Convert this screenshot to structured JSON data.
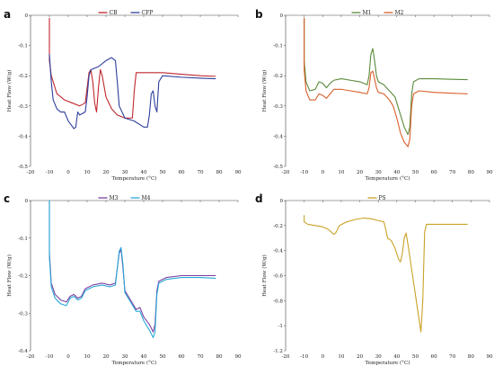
{
  "chart_data": [
    {
      "panel": "a",
      "type": "line",
      "xlabel": "Temperature (°C)",
      "ylabel": "Heat Flow (W/g)",
      "xlim": [
        -20,
        90
      ],
      "ylim": [
        -0.5,
        0
      ],
      "xticks": [
        -20,
        -10,
        0,
        10,
        20,
        30,
        40,
        50,
        60,
        70,
        80,
        90
      ],
      "yticks": [
        0,
        -0.1,
        -0.2,
        -0.3,
        -0.4,
        -0.5
      ],
      "legend_position": "top-center",
      "series": [
        {
          "name": "CB",
          "color": "#c0272d",
          "points": [
            [
              -10,
              -0.01
            ],
            [
              -10,
              -0.15
            ],
            [
              -9,
              -0.2
            ],
            [
              -6,
              -0.26
            ],
            [
              -2,
              -0.28
            ],
            [
              2,
              -0.29
            ],
            [
              6,
              -0.3
            ],
            [
              9,
              -0.29
            ],
            [
              10,
              -0.24
            ],
            [
              11,
              -0.19
            ],
            [
              12,
              -0.18
            ],
            [
              13,
              -0.22
            ],
            [
              14,
              -0.29
            ],
            [
              15,
              -0.32
            ],
            [
              16,
              -0.24
            ],
            [
              17,
              -0.18
            ],
            [
              18,
              -0.2
            ],
            [
              20,
              -0.27
            ],
            [
              23,
              -0.31
            ],
            [
              26,
              -0.33
            ],
            [
              30,
              -0.34
            ],
            [
              34,
              -0.34
            ],
            [
              35,
              -0.25
            ],
            [
              36,
              -0.19
            ],
            [
              40,
              -0.19
            ],
            [
              50,
              -0.19
            ],
            [
              60,
              -0.195
            ],
            [
              70,
              -0.2
            ],
            [
              78,
              -0.202
            ]
          ]
        },
        {
          "name": "CFP",
          "color": "#2e3e9c",
          "points": [
            [
              -10,
              -0.13
            ],
            [
              -9,
              -0.22
            ],
            [
              -8,
              -0.28
            ],
            [
              -6,
              -0.31
            ],
            [
              -4,
              -0.32
            ],
            [
              -2,
              -0.32
            ],
            [
              0,
              -0.35
            ],
            [
              3,
              -0.375
            ],
            [
              4,
              -0.37
            ],
            [
              5,
              -0.32
            ],
            [
              6,
              -0.33
            ],
            [
              9,
              -0.32
            ],
            [
              10,
              -0.27
            ],
            [
              11,
              -0.2
            ],
            [
              12,
              -0.18
            ],
            [
              16,
              -0.17
            ],
            [
              20,
              -0.15
            ],
            [
              23,
              -0.14
            ],
            [
              25,
              -0.15
            ],
            [
              26,
              -0.22
            ],
            [
              27,
              -0.3
            ],
            [
              30,
              -0.34
            ],
            [
              35,
              -0.35
            ],
            [
              40,
              -0.37
            ],
            [
              42,
              -0.37
            ],
            [
              43,
              -0.33
            ],
            [
              44,
              -0.26
            ],
            [
              45,
              -0.25
            ],
            [
              46,
              -0.3
            ],
            [
              47,
              -0.32
            ],
            [
              48,
              -0.22
            ],
            [
              50,
              -0.2
            ],
            [
              60,
              -0.205
            ],
            [
              70,
              -0.208
            ],
            [
              78,
              -0.21
            ]
          ]
        }
      ]
    },
    {
      "panel": "b",
      "type": "line",
      "xlabel": "Temperature (°C)",
      "ylabel": "Heat Flow (W/g)",
      "xlim": [
        -20,
        90
      ],
      "ylim": [
        -0.5,
        0
      ],
      "xticks": [
        -20,
        -10,
        0,
        10,
        20,
        30,
        40,
        50,
        60,
        70,
        80,
        90
      ],
      "yticks": [
        0,
        -0.1,
        -0.2,
        -0.3,
        -0.4,
        -0.5
      ],
      "legend_position": "top-center",
      "series": [
        {
          "name": "M1",
          "color": "#5b8a3a",
          "points": [
            [
              -10,
              -0.01
            ],
            [
              -10,
              -0.15
            ],
            [
              -9,
              -0.22
            ],
            [
              -7,
              -0.25
            ],
            [
              -4,
              -0.245
            ],
            [
              -2,
              -0.22
            ],
            [
              0,
              -0.225
            ],
            [
              2,
              -0.24
            ],
            [
              4,
              -0.225
            ],
            [
              6,
              -0.215
            ],
            [
              10,
              -0.21
            ],
            [
              15,
              -0.215
            ],
            [
              20,
              -0.22
            ],
            [
              24,
              -0.23
            ],
            [
              25,
              -0.2
            ],
            [
              26,
              -0.13
            ],
            [
              27,
              -0.11
            ],
            [
              28,
              -0.15
            ],
            [
              29,
              -0.2
            ],
            [
              30,
              -0.22
            ],
            [
              33,
              -0.23
            ],
            [
              36,
              -0.25
            ],
            [
              39,
              -0.27
            ],
            [
              41,
              -0.31
            ],
            [
              44,
              -0.37
            ],
            [
              46,
              -0.395
            ],
            [
              47,
              -0.37
            ],
            [
              48,
              -0.26
            ],
            [
              49,
              -0.22
            ],
            [
              52,
              -0.21
            ],
            [
              60,
              -0.21
            ],
            [
              70,
              -0.212
            ],
            [
              78,
              -0.213
            ]
          ]
        },
        {
          "name": "M2",
          "color": "#d95f2b",
          "points": [
            [
              -10,
              -0.01
            ],
            [
              -10,
              -0.18
            ],
            [
              -9,
              -0.25
            ],
            [
              -7,
              -0.28
            ],
            [
              -4,
              -0.28
            ],
            [
              -2,
              -0.26
            ],
            [
              0,
              -0.265
            ],
            [
              2,
              -0.275
            ],
            [
              4,
              -0.26
            ],
            [
              6,
              -0.245
            ],
            [
              10,
              -0.245
            ],
            [
              15,
              -0.25
            ],
            [
              20,
              -0.255
            ],
            [
              24,
              -0.26
            ],
            [
              25,
              -0.24
            ],
            [
              26,
              -0.19
            ],
            [
              27,
              -0.185
            ],
            [
              28,
              -0.21
            ],
            [
              29,
              -0.24
            ],
            [
              30,
              -0.255
            ],
            [
              33,
              -0.26
            ],
            [
              36,
              -0.28
            ],
            [
              38,
              -0.3
            ],
            [
              40,
              -0.34
            ],
            [
              42,
              -0.39
            ],
            [
              44,
              -0.42
            ],
            [
              46,
              -0.435
            ],
            [
              47,
              -0.41
            ],
            [
              48,
              -0.3
            ],
            [
              49,
              -0.26
            ],
            [
              52,
              -0.25
            ],
            [
              60,
              -0.255
            ],
            [
              70,
              -0.258
            ],
            [
              78,
              -0.26
            ]
          ]
        }
      ]
    },
    {
      "panel": "c",
      "type": "line",
      "xlabel": "Temperature (°C)",
      "ylabel": "Heat Flow (W/g)",
      "xlim": [
        -20,
        90
      ],
      "ylim": [
        -0.4,
        0
      ],
      "xticks": [
        -20,
        -10,
        0,
        10,
        20,
        30,
        40,
        50,
        60,
        70,
        80,
        90
      ],
      "yticks": [
        0,
        -0.1,
        -0.2,
        -0.3,
        -0.4
      ],
      "legend_position": "top-center",
      "series": [
        {
          "name": "M3",
          "color": "#7b3fa0",
          "points": [
            [
              -10,
              0
            ],
            [
              -10,
              -0.14
            ],
            [
              -9,
              -0.22
            ],
            [
              -7,
              -0.25
            ],
            [
              -4,
              -0.265
            ],
            [
              -1,
              -0.27
            ],
            [
              1,
              -0.255
            ],
            [
              3,
              -0.25
            ],
            [
              5,
              -0.26
            ],
            [
              7,
              -0.255
            ],
            [
              9,
              -0.235
            ],
            [
              13,
              -0.225
            ],
            [
              18,
              -0.22
            ],
            [
              22,
              -0.225
            ],
            [
              25,
              -0.22
            ],
            [
              26,
              -0.18
            ],
            [
              27,
              -0.14
            ],
            [
              28,
              -0.13
            ],
            [
              29,
              -0.18
            ],
            [
              30,
              -0.24
            ],
            [
              33,
              -0.265
            ],
            [
              36,
              -0.29
            ],
            [
              38,
              -0.285
            ],
            [
              40,
              -0.31
            ],
            [
              43,
              -0.33
            ],
            [
              45,
              -0.35
            ],
            [
              46,
              -0.33
            ],
            [
              47,
              -0.24
            ],
            [
              48,
              -0.215
            ],
            [
              52,
              -0.205
            ],
            [
              60,
              -0.2
            ],
            [
              70,
              -0.2
            ],
            [
              78,
              -0.2
            ]
          ]
        },
        {
          "name": "M4",
          "color": "#29a8d8",
          "points": [
            [
              -10,
              0
            ],
            [
              -10,
              -0.15
            ],
            [
              -9,
              -0.23
            ],
            [
              -7,
              -0.26
            ],
            [
              -4,
              -0.275
            ],
            [
              -1,
              -0.28
            ],
            [
              1,
              -0.26
            ],
            [
              3,
              -0.255
            ],
            [
              5,
              -0.265
            ],
            [
              7,
              -0.26
            ],
            [
              9,
              -0.24
            ],
            [
              13,
              -0.23
            ],
            [
              18,
              -0.225
            ],
            [
              22,
              -0.23
            ],
            [
              25,
              -0.225
            ],
            [
              26,
              -0.18
            ],
            [
              27,
              -0.135
            ],
            [
              28,
              -0.125
            ],
            [
              29,
              -0.17
            ],
            [
              30,
              -0.245
            ],
            [
              33,
              -0.27
            ],
            [
              36,
              -0.295
            ],
            [
              38,
              -0.295
            ],
            [
              40,
              -0.32
            ],
            [
              43,
              -0.345
            ],
            [
              45,
              -0.365
            ],
            [
              46,
              -0.35
            ],
            [
              47,
              -0.25
            ],
            [
              48,
              -0.22
            ],
            [
              52,
              -0.21
            ],
            [
              60,
              -0.205
            ],
            [
              70,
              -0.205
            ],
            [
              78,
              -0.207
            ]
          ]
        }
      ]
    },
    {
      "panel": "d",
      "type": "line",
      "xlabel": "Temperature (°C)",
      "ylabel": "Heat Flow (W/g)",
      "xlim": [
        -20,
        90
      ],
      "ylim": [
        -1.2,
        0
      ],
      "xticks": [
        -20,
        -10,
        0,
        10,
        20,
        30,
        40,
        50,
        60,
        70,
        80,
        90
      ],
      "yticks": [
        0,
        -0.2,
        -0.4,
        -0.6,
        -0.8,
        -1,
        -1.2
      ],
      "legend_position": "top-center",
      "series": [
        {
          "name": "PS",
          "color": "#c9a227",
          "points": [
            [
              -10,
              -0.12
            ],
            [
              -10,
              -0.17
            ],
            [
              -8,
              -0.19
            ],
            [
              -4,
              -0.2
            ],
            [
              0,
              -0.21
            ],
            [
              3,
              -0.23
            ],
            [
              6,
              -0.27
            ],
            [
              7,
              -0.26
            ],
            [
              9,
              -0.2
            ],
            [
              13,
              -0.17
            ],
            [
              18,
              -0.15
            ],
            [
              22,
              -0.14
            ],
            [
              26,
              -0.145
            ],
            [
              30,
              -0.16
            ],
            [
              33,
              -0.17
            ],
            [
              34,
              -0.23
            ],
            [
              35,
              -0.3
            ],
            [
              37,
              -0.32
            ],
            [
              39,
              -0.38
            ],
            [
              41,
              -0.47
            ],
            [
              42,
              -0.49
            ],
            [
              43,
              -0.42
            ],
            [
              44,
              -0.3
            ],
            [
              45,
              -0.26
            ],
            [
              46,
              -0.35
            ],
            [
              48,
              -0.55
            ],
            [
              50,
              -0.75
            ],
            [
              52,
              -0.95
            ],
            [
              53,
              -1.05
            ],
            [
              54,
              -0.8
            ],
            [
              55,
              -0.25
            ],
            [
              56,
              -0.19
            ],
            [
              60,
              -0.19
            ],
            [
              70,
              -0.19
            ],
            [
              78,
              -0.19
            ]
          ]
        }
      ]
    }
  ]
}
